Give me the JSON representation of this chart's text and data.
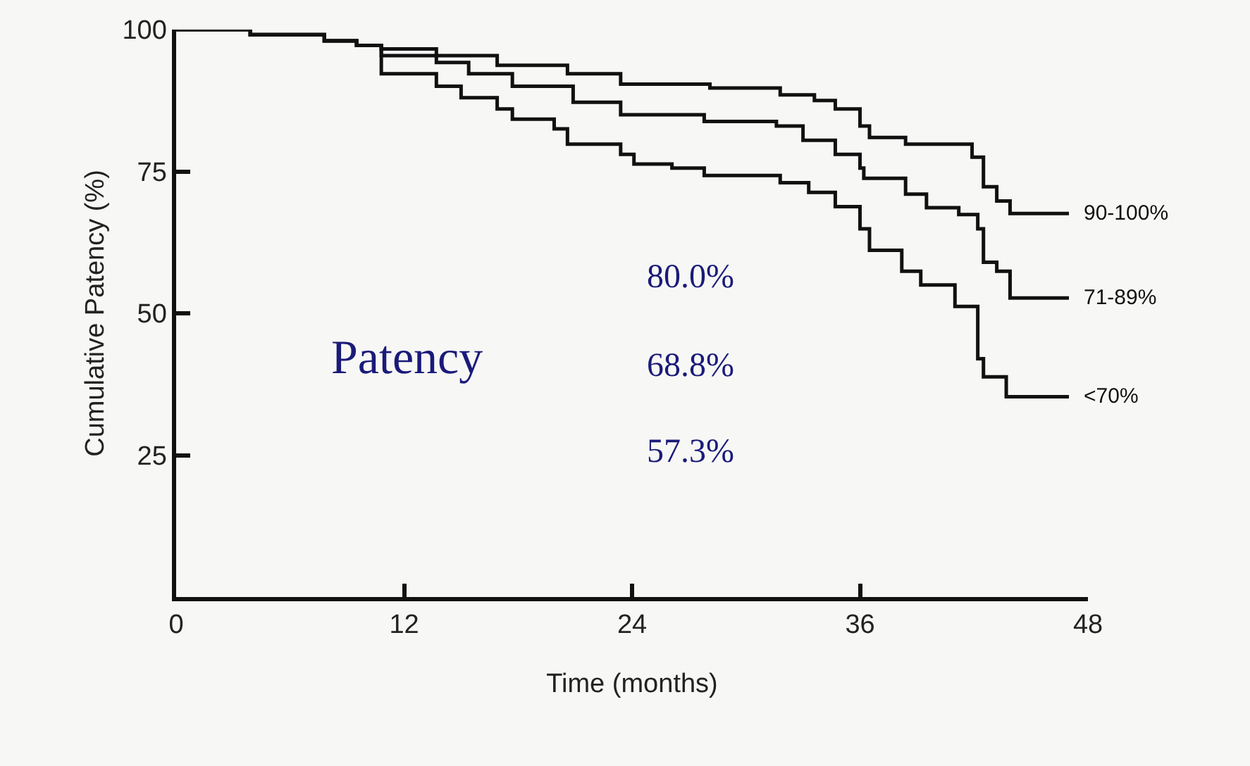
{
  "chart_data": {
    "type": "step",
    "xlabel": "Time (months)",
    "ylabel": "Cumulative Patency (%)",
    "xlim": [
      0,
      48
    ],
    "xticks": [
      0,
      12,
      24,
      36,
      48
    ],
    "ylim": [
      0,
      100
    ],
    "yticks": [
      25,
      50,
      75,
      100
    ],
    "grid": false,
    "legend": false,
    "marker": "none",
    "line_style": "solid",
    "series": [
      {
        "name": "90-100%",
        "color": "#111111",
        "x": [
          0,
          3.9,
          7.8,
          9.5,
          10.8,
          13.7,
          16.9,
          20.6,
          23.4,
          28.1,
          31.8,
          33.6,
          34.7,
          36.0,
          36.5,
          38.4,
          39.5,
          41.9,
          42.5,
          43.2,
          43.9,
          47
        ],
        "values": [
          100,
          99.1,
          98,
          97.2,
          96.6,
          95.4,
          93.7,
          92.2,
          90.4,
          89.7,
          88.5,
          87.5,
          86,
          83,
          81,
          79.8,
          79.8,
          77.5,
          72.3,
          69.8,
          67.6,
          67.6
        ]
      },
      {
        "name": "71-89%",
        "color": "#111111",
        "x": [
          0,
          3.9,
          7.8,
          9.5,
          10.8,
          13.7,
          15.4,
          17.7,
          20.9,
          23.4,
          27.8,
          31.6,
          33.0,
          34.7,
          36.0,
          36.2,
          38.4,
          39.5,
          41.2,
          42.2,
          42.5,
          43.2,
          43.9,
          47
        ],
        "values": [
          100,
          99.1,
          98,
          97.2,
          95.4,
          94.2,
          92.2,
          90,
          87.2,
          85,
          83.8,
          83,
          80.5,
          78,
          75.6,
          73.8,
          71,
          68.6,
          67.4,
          64.9,
          59,
          57.4,
          52.7,
          52.7
        ]
      },
      {
        "name": "<70%",
        "color": "#111111",
        "x": [
          0,
          3.9,
          7.8,
          9.5,
          10.8,
          13.7,
          15,
          16.9,
          17.7,
          19.9,
          20.6,
          23.4,
          24.1,
          26.1,
          27.8,
          31.8,
          33.3,
          34.7,
          36.0,
          36.5,
          38.2,
          39.2,
          41.0,
          42.2,
          42.5,
          43.7,
          47
        ],
        "values": [
          100,
          99.1,
          98,
          97.2,
          92.2,
          90,
          88,
          86,
          84.2,
          82.5,
          79.8,
          78,
          76.3,
          75.6,
          74.3,
          73,
          71.3,
          68.8,
          64.9,
          61.1,
          57.4,
          55,
          51.2,
          42,
          38.8,
          35.3,
          35.3
        ]
      }
    ],
    "annotations": [
      "Patency",
      "80.0%",
      "68.8%",
      "57.3%"
    ]
  }
}
